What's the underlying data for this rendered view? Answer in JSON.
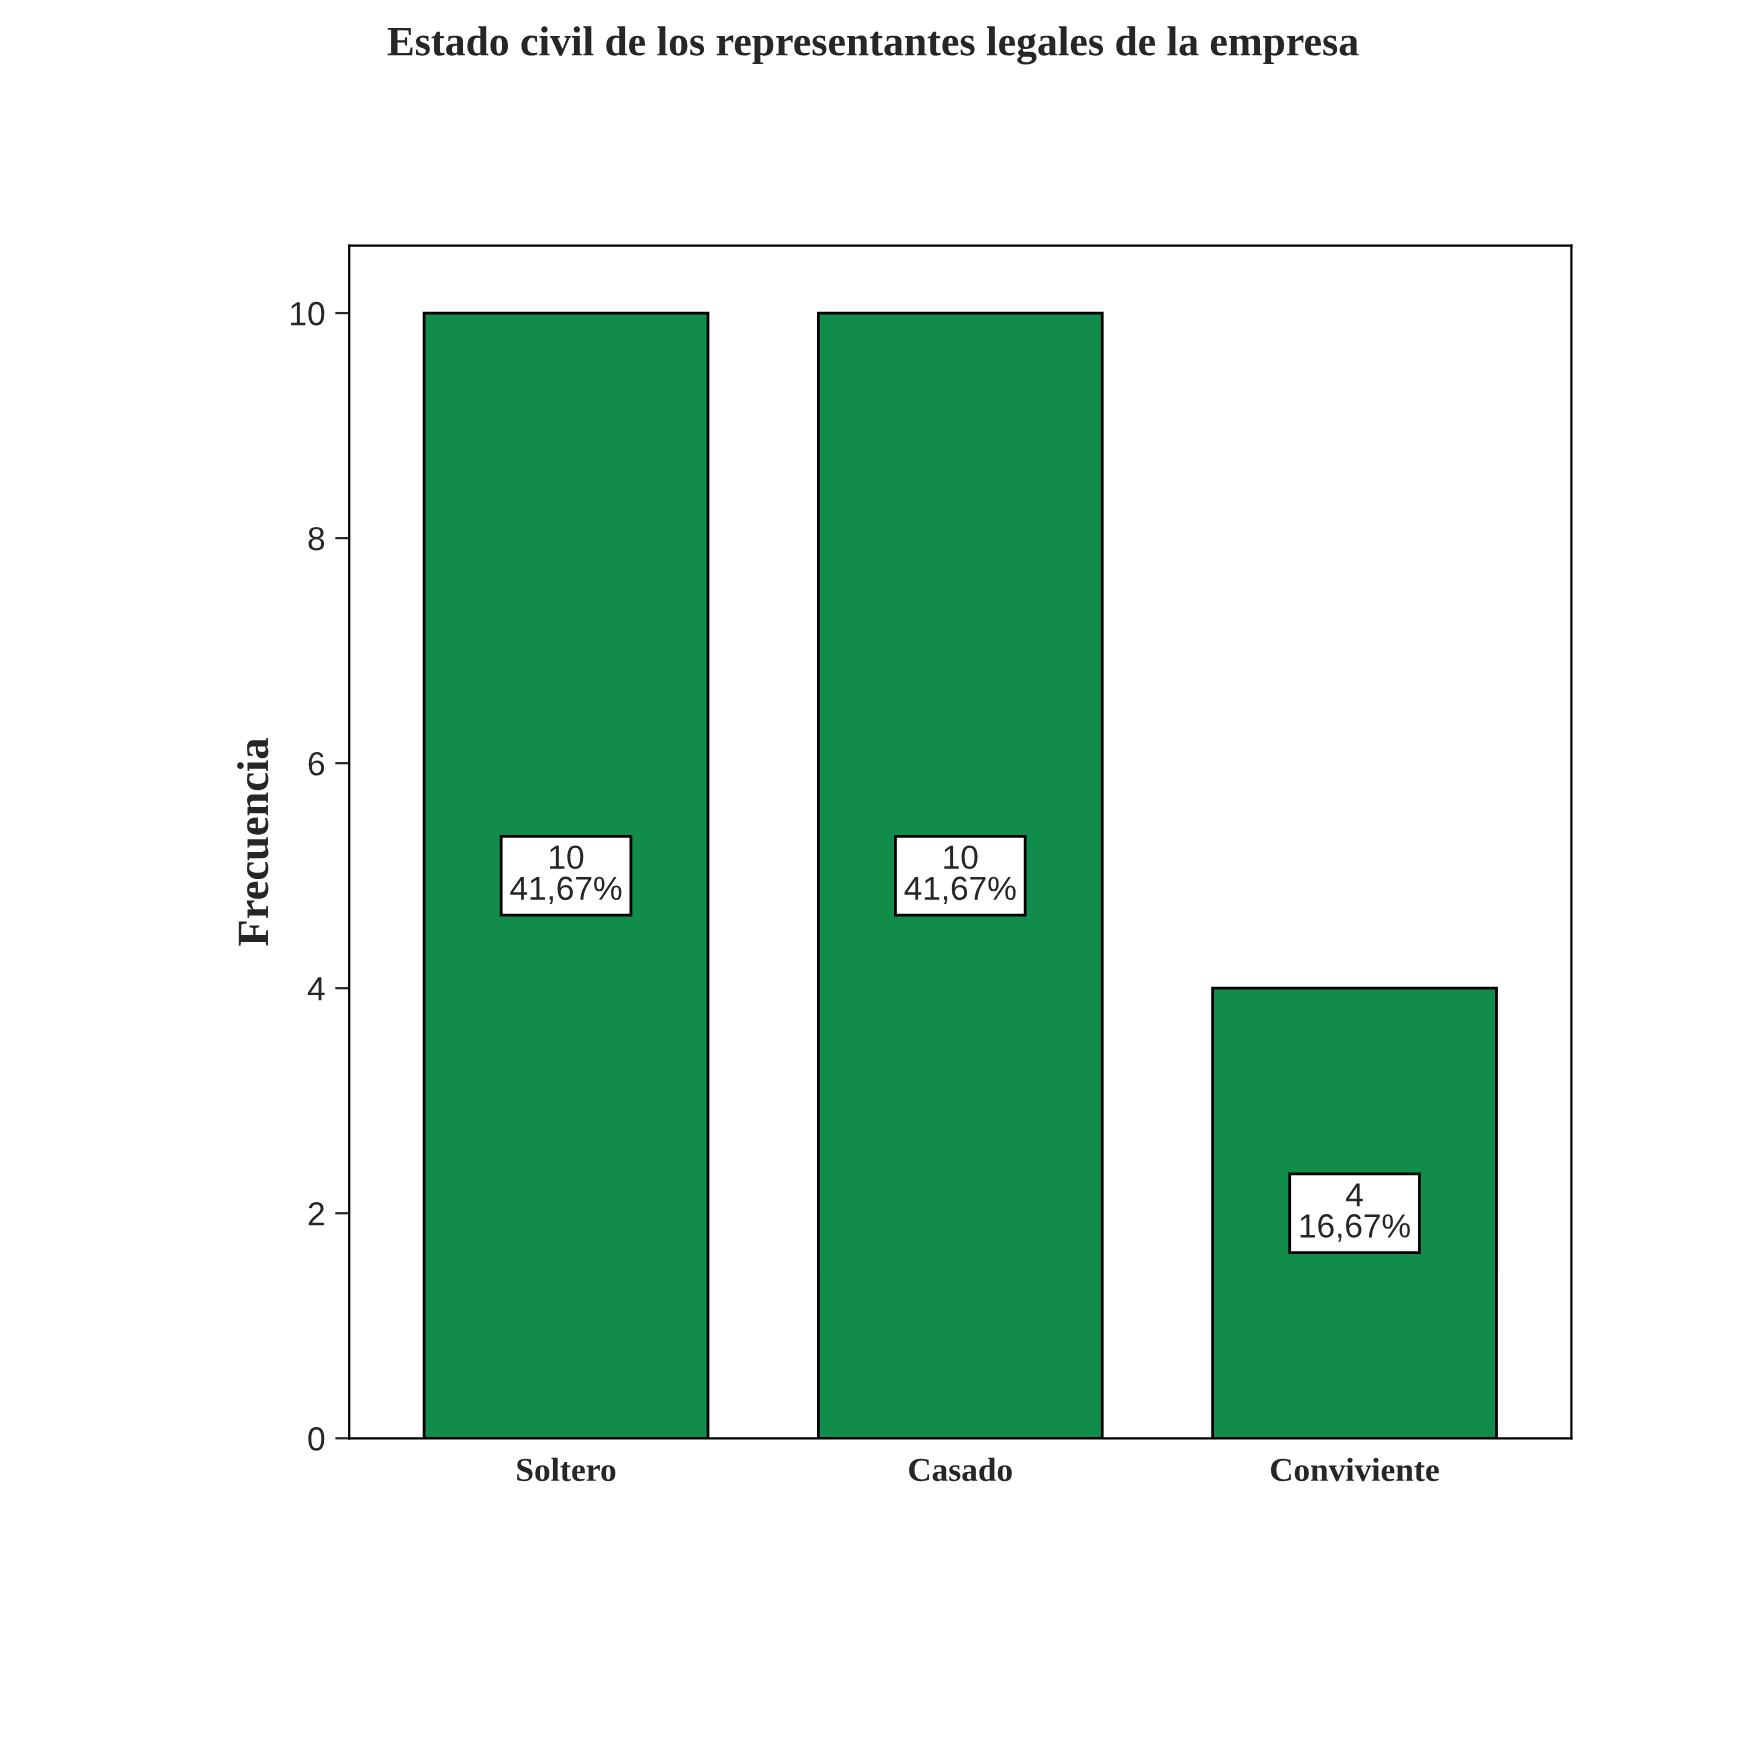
{
  "chart_data": {
    "type": "bar",
    "title": "Estado civil de los representantes legales de la empresa",
    "ylabel": "Frecuencia",
    "categories": [
      "Soltero",
      "Casado",
      "Conviviente"
    ],
    "values": [
      10,
      10,
      4
    ],
    "value_labels": [
      "10\n41,67%",
      "10\n41,67%",
      "4\n16,67%"
    ],
    "color": "#118c4a",
    "ylim": [
      0,
      10.6
    ],
    "yticks": [
      0,
      2,
      4,
      6,
      8,
      10
    ],
    "grid": false
  }
}
